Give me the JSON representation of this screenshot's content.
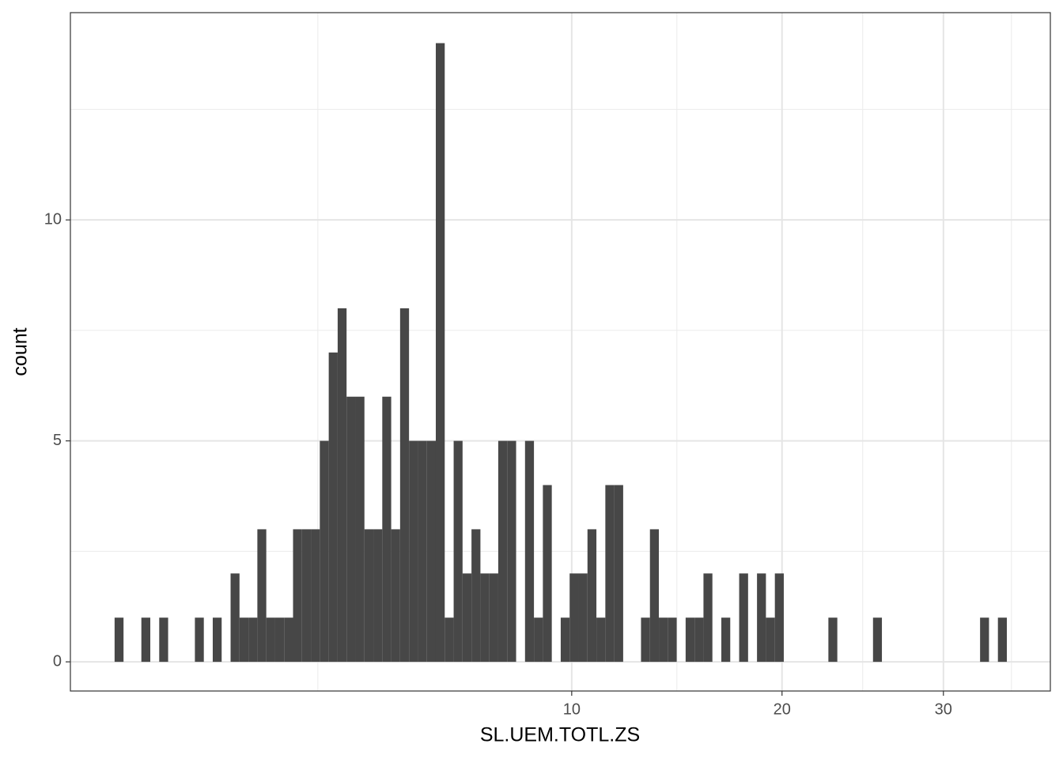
{
  "chart_data": {
    "type": "histogram",
    "x_label": "SL.UEM.TOTL.ZS",
    "y_label": "count",
    "xscale": "sqrt",
    "color": "#474747",
    "grid": true,
    "bins": [
      0.0994,
      0.1376,
      0.1818,
      0.2323,
      0.289,
      0.3519,
      0.4208,
      0.496,
      0.5774,
      0.6649,
      0.7586,
      0.8586,
      0.9645,
      1.0768,
      1.1953,
      1.32,
      1.4506,
      1.5876,
      1.7308,
      1.8799,
      2.0355,
      2.1972,
      2.3648,
      2.5389,
      2.7192,
      2.9057,
      3.098,
      3.2968,
      3.5018,
      3.7126,
      3.9299,
      4.1534,
      4.3827,
      4.6186,
      4.8607,
      5.109,
      5.3629,
      5.6235,
      5.8903,
      6.1628,
      6.442,
      6.7273,
      7.0183,
      7.3159,
      7.6198,
      7.9299,
      8.2455,
      8.5679,
      8.8965,
      9.2307,
      9.5716,
      9.9187,
      10.2714,
      10.6309,
      10.9965,
      11.3684,
      11.7457,
      12.1299,
      12.5203,
      12.9161,
      13.3189,
      13.7278,
      14.1421,
      14.5634,
      14.9908,
      15.4245,
      15.8635,
      16.3095,
      16.7617,
      17.2192,
      17.6837,
      18.1544,
      18.6305,
      19.1135,
      19.6028,
      20.0982,
      20.5989,
      21.1067,
      21.6206,
      22.1398,
      22.6662,
      23.1987,
      23.7364,
      24.2812,
      24.8323,
      25.3895,
      25.9519,
      26.5215,
      27.0972,
      27.6781,
      28.2662,
      28.8605,
      29.4599,
      30.0666,
      30.6794,
      31.2984,
      31.9225,
      32.5539,
      33.1914,
      33.834,
      34.4839
    ],
    "values": [
      1,
      0,
      0,
      1,
      0,
      1,
      0,
      0,
      0,
      1,
      0,
      1,
      0,
      2,
      1,
      1,
      3,
      1,
      1,
      1,
      3,
      3,
      3,
      5,
      7,
      8,
      6,
      6,
      3,
      3,
      6,
      3,
      8,
      5,
      5,
      5,
      14,
      1,
      5,
      2,
      3,
      2,
      2,
      5,
      5,
      0,
      5,
      1,
      4,
      0,
      1,
      2,
      2,
      3,
      1,
      4,
      4,
      0,
      0,
      1,
      3,
      1,
      1,
      0,
      1,
      1,
      2,
      0,
      1,
      0,
      2,
      0,
      2,
      1,
      2,
      0,
      0,
      0,
      0,
      0,
      1,
      0,
      0,
      0,
      0,
      1,
      0,
      0,
      0,
      0,
      0,
      0,
      0,
      0,
      0,
      0,
      0,
      1,
      0,
      1
    ],
    "xlim": [
      0.0016,
      37.74
    ],
    "xticks": [
      10,
      20,
      30
    ],
    "ylim": [
      -0.66,
      14.69
    ],
    "yticks": [
      0,
      5,
      10
    ]
  }
}
